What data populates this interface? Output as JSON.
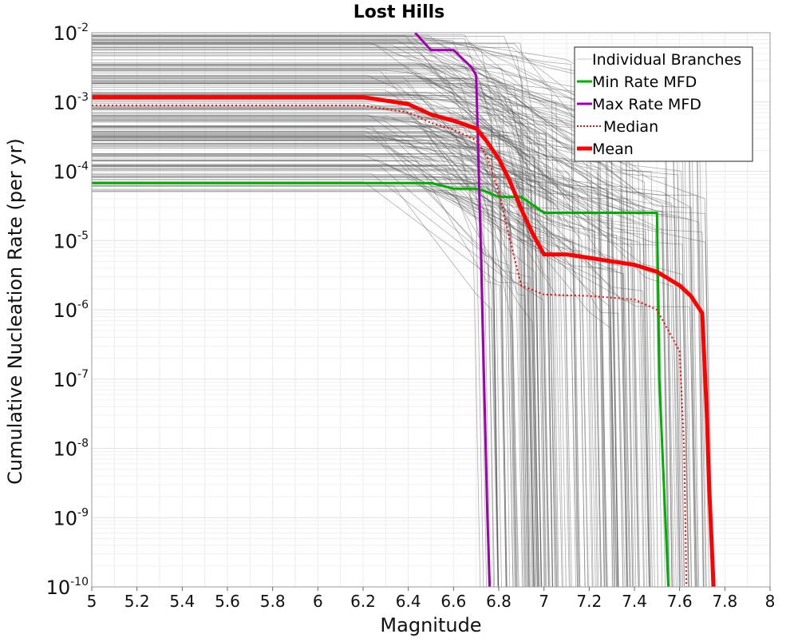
{
  "chart_data": {
    "type": "line",
    "title": "Lost Hills",
    "xlabel": "Magnitude",
    "ylabel": "Cumulative Nucleation Rate (per yr)",
    "xlim": [
      5,
      8
    ],
    "ylim_log10": [
      -10,
      -2
    ],
    "y_scale": "log",
    "grid": true,
    "x_ticks": [
      "5",
      "5.2",
      "5.4",
      "5.6",
      "5.8",
      "6",
      "6.2",
      "6.4",
      "6.6",
      "6.8",
      "7",
      "7.2",
      "7.4",
      "7.6",
      "7.8",
      "8"
    ],
    "y_ticks": [
      {
        "base": "10",
        "exp": "-2"
      },
      {
        "base": "10",
        "exp": "-3"
      },
      {
        "base": "10",
        "exp": "-4"
      },
      {
        "base": "10",
        "exp": "-5"
      },
      {
        "base": "10",
        "exp": "-6"
      },
      {
        "base": "10",
        "exp": "-7"
      },
      {
        "base": "10",
        "exp": "-8"
      },
      {
        "base": "10",
        "exp": "-9"
      },
      {
        "base": "10",
        "exp": "-10"
      }
    ],
    "legend_position": "top-right",
    "legend": [
      {
        "label": "Individual Branches",
        "color": "#c8c8c8",
        "style": "thin"
      },
      {
        "label": "Min Rate MFD",
        "color": "#00b000",
        "style": "solid"
      },
      {
        "label": "Max Rate MFD",
        "color": "#a000b0",
        "style": "solid"
      },
      {
        "label": "Median",
        "color": "#ff0000",
        "style": "dotted"
      },
      {
        "label": "Mean",
        "color": "#ff0000",
        "style": "thick"
      }
    ],
    "branch_band": {
      "color": "#505050",
      "count": 200,
      "rate_log10_range": [
        -4.3,
        -2
      ],
      "break_magnitude_range": [
        6.2,
        7.5
      ],
      "max_magnitude_range": [
        6.7,
        7.75
      ]
    },
    "series": [
      {
        "name": "Min Rate MFD",
        "color": "#00b000",
        "x": [
          5.0,
          6.5,
          6.6,
          6.7,
          6.75,
          6.8,
          6.9,
          7.0,
          7.1,
          7.2,
          7.3,
          7.4,
          7.5,
          7.51,
          7.55
        ],
        "log10_y": [
          -4.17,
          -4.17,
          -4.25,
          -4.25,
          -4.3,
          -4.37,
          -4.37,
          -4.6,
          -4.6,
          -4.6,
          -4.6,
          -4.6,
          -4.6,
          -7.0,
          -10.0
        ]
      },
      {
        "name": "Max Rate MFD",
        "color": "#a000b0",
        "x": [
          6.43,
          6.5,
          6.6,
          6.68,
          6.7,
          6.72,
          6.75,
          6.76
        ],
        "log10_y": [
          -2.0,
          -2.25,
          -2.25,
          -2.5,
          -2.62,
          -5.0,
          -9.0,
          -10.0
        ]
      },
      {
        "name": "Median",
        "color": "#ff0000",
        "x": [
          5.0,
          6.2,
          6.4,
          6.5,
          6.6,
          6.7,
          6.75,
          6.8,
          6.85,
          6.9,
          7.0,
          7.2,
          7.4,
          7.5,
          7.55,
          7.6,
          7.62,
          7.63
        ],
        "log10_y": [
          -3.05,
          -3.05,
          -3.15,
          -3.3,
          -3.4,
          -3.55,
          -3.8,
          -4.3,
          -5.0,
          -5.65,
          -5.78,
          -5.8,
          -5.85,
          -6.0,
          -6.3,
          -6.6,
          -8.0,
          -10.0
        ]
      },
      {
        "name": "Mean",
        "color": "#ff0000",
        "x": [
          5.0,
          6.2,
          6.3,
          6.4,
          6.5,
          6.6,
          6.7,
          6.75,
          6.8,
          6.85,
          6.9,
          6.95,
          7.0,
          7.1,
          7.2,
          7.3,
          7.4,
          7.5,
          7.6,
          7.65,
          7.7,
          7.72,
          7.73,
          7.75
        ],
        "log10_y": [
          -2.93,
          -2.93,
          -2.98,
          -3.03,
          -3.18,
          -3.27,
          -3.38,
          -3.58,
          -3.82,
          -4.15,
          -4.55,
          -4.9,
          -5.2,
          -5.2,
          -5.25,
          -5.3,
          -5.35,
          -5.45,
          -5.65,
          -5.8,
          -6.05,
          -7.5,
          -8.5,
          -10.0
        ]
      }
    ]
  }
}
